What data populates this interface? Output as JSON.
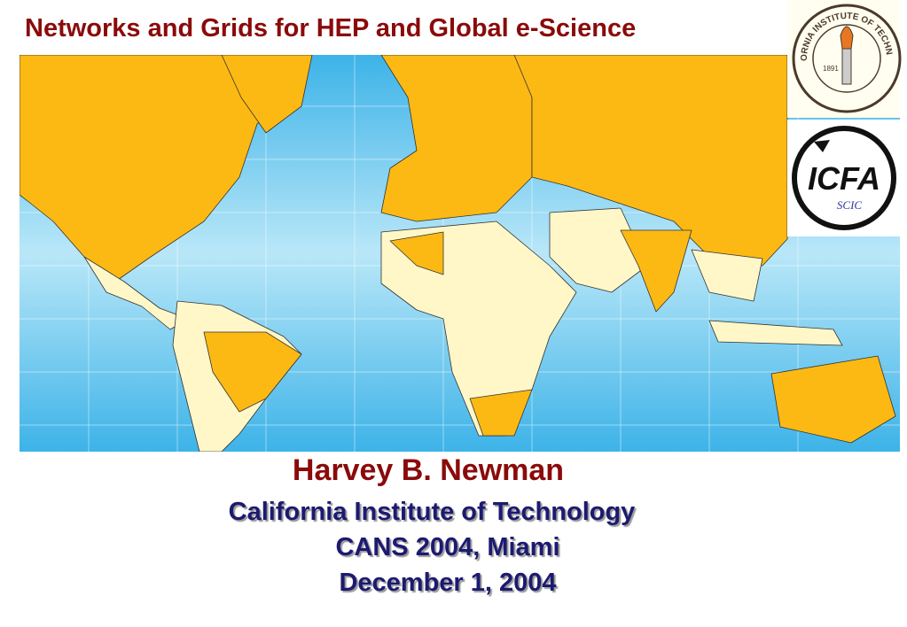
{
  "header": {
    "title": "Networks and Grids for HEP and Global e-Science"
  },
  "logos": {
    "caltech": {
      "name": "CALIFORNIA INSTITUTE OF TECHNOLOGY",
      "year": "1891"
    },
    "icfa": {
      "name": "ICFA",
      "sub": "SCIC"
    }
  },
  "footer": {
    "author": "Harvey B. Newman",
    "affiliation": "California Institute of Technology",
    "event": "CANS 2004, Miami",
    "date": "December 1, 2004"
  }
}
